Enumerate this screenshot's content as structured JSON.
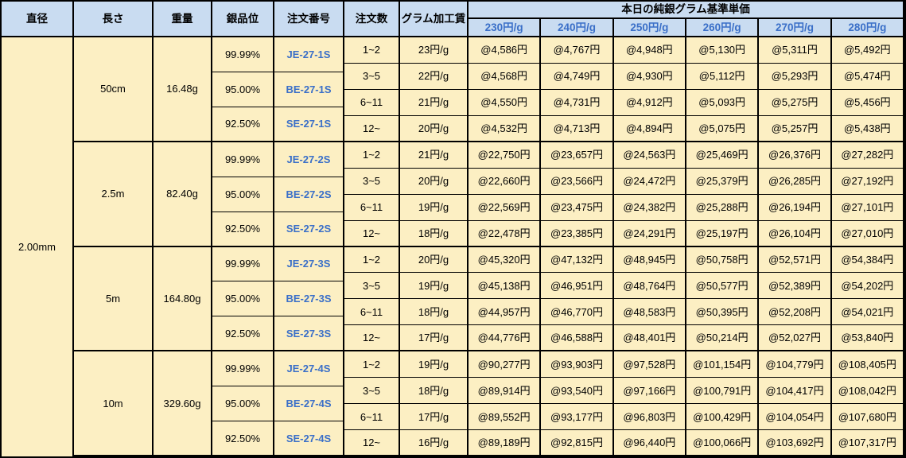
{
  "table": {
    "headers": {
      "diameter": "直径",
      "length": "長さ",
      "weight": "重量",
      "purity": "銀品位",
      "order_no": "注文番号",
      "order_qty": "注文数",
      "gram_fee": "グラム加工賃",
      "price_group": "本日の純銀グラム基準単価",
      "price_tiers": [
        "230円/g",
        "240円/g",
        "250円/g",
        "260円/g",
        "270円/g",
        "280円/g"
      ]
    },
    "diameter": "2.00mm",
    "groups": [
      {
        "length": "50cm",
        "weight": "16.48g",
        "purities": [
          {
            "purity": "99.99%",
            "order_no": "JE-27-1S"
          },
          {
            "purity": "95.00%",
            "order_no": "BE-27-1S"
          },
          {
            "purity": "92.50%",
            "order_no": "SE-27-1S"
          }
        ],
        "rows": [
          {
            "qty": "1~2",
            "fee": "23円/g",
            "prices": [
              "@4,586円",
              "@4,767円",
              "@4,948円",
              "@5,130円",
              "@5,311円",
              "@5,492円"
            ]
          },
          {
            "qty": "3~5",
            "fee": "22円/g",
            "prices": [
              "@4,568円",
              "@4,749円",
              "@4,930円",
              "@5,112円",
              "@5,293円",
              "@5,474円"
            ]
          },
          {
            "qty": "6~11",
            "fee": "21円/g",
            "prices": [
              "@4,550円",
              "@4,731円",
              "@4,912円",
              "@5,093円",
              "@5,275円",
              "@5,456円"
            ]
          },
          {
            "qty": "12~",
            "fee": "20円/g",
            "prices": [
              "@4,532円",
              "@4,713円",
              "@4,894円",
              "@5,075円",
              "@5,257円",
              "@5,438円"
            ]
          }
        ]
      },
      {
        "length": "2.5m",
        "weight": "82.40g",
        "purities": [
          {
            "purity": "99.99%",
            "order_no": "JE-27-2S"
          },
          {
            "purity": "95.00%",
            "order_no": "BE-27-2S"
          },
          {
            "purity": "92.50%",
            "order_no": "SE-27-2S"
          }
        ],
        "rows": [
          {
            "qty": "1~2",
            "fee": "21円/g",
            "prices": [
              "@22,750円",
              "@23,657円",
              "@24,563円",
              "@25,469円",
              "@26,376円",
              "@27,282円"
            ]
          },
          {
            "qty": "3~5",
            "fee": "20円/g",
            "prices": [
              "@22,660円",
              "@23,566円",
              "@24,472円",
              "@25,379円",
              "@26,285円",
              "@27,192円"
            ]
          },
          {
            "qty": "6~11",
            "fee": "19円/g",
            "prices": [
              "@22,569円",
              "@23,475円",
              "@24,382円",
              "@25,288円",
              "@26,194円",
              "@27,101円"
            ]
          },
          {
            "qty": "12~",
            "fee": "18円/g",
            "prices": [
              "@22,478円",
              "@23,385円",
              "@24,291円",
              "@25,197円",
              "@26,104円",
              "@27,010円"
            ]
          }
        ]
      },
      {
        "length": "5m",
        "weight": "164.80g",
        "purities": [
          {
            "purity": "99.99%",
            "order_no": "JE-27-3S"
          },
          {
            "purity": "95.00%",
            "order_no": "BE-27-3S"
          },
          {
            "purity": "92.50%",
            "order_no": "SE-27-3S"
          }
        ],
        "rows": [
          {
            "qty": "1~2",
            "fee": "20円/g",
            "prices": [
              "@45,320円",
              "@47,132円",
              "@48,945円",
              "@50,758円",
              "@52,571円",
              "@54,384円"
            ]
          },
          {
            "qty": "3~5",
            "fee": "19円/g",
            "prices": [
              "@45,138円",
              "@46,951円",
              "@48,764円",
              "@50,577円",
              "@52,389円",
              "@54,202円"
            ]
          },
          {
            "qty": "6~11",
            "fee": "18円/g",
            "prices": [
              "@44,957円",
              "@46,770円",
              "@48,583円",
              "@50,395円",
              "@52,208円",
              "@54,021円"
            ]
          },
          {
            "qty": "12~",
            "fee": "17円/g",
            "prices": [
              "@44,776円",
              "@46,588円",
              "@48,401円",
              "@50,214円",
              "@52,027円",
              "@53,840円"
            ]
          }
        ]
      },
      {
        "length": "10m",
        "weight": "329.60g",
        "purities": [
          {
            "purity": "99.99%",
            "order_no": "JE-27-4S"
          },
          {
            "purity": "95.00%",
            "order_no": "BE-27-4S"
          },
          {
            "purity": "92.50%",
            "order_no": "SE-27-4S"
          }
        ],
        "rows": [
          {
            "qty": "1~2",
            "fee": "19円/g",
            "prices": [
              "@90,277円",
              "@93,903円",
              "@97,528円",
              "@101,154円",
              "@104,779円",
              "@108,405円"
            ]
          },
          {
            "qty": "3~5",
            "fee": "18円/g",
            "prices": [
              "@89,914円",
              "@93,540円",
              "@97,166円",
              "@100,791円",
              "@104,417円",
              "@108,042円"
            ]
          },
          {
            "qty": "6~11",
            "fee": "17円/g",
            "prices": [
              "@89,552円",
              "@93,177円",
              "@96,803円",
              "@100,429円",
              "@104,054円",
              "@107,680円"
            ]
          },
          {
            "qty": "12~",
            "fee": "16円/g",
            "prices": [
              "@89,189円",
              "@92,815円",
              "@96,440円",
              "@100,066円",
              "@103,692円",
              "@107,317円"
            ]
          }
        ]
      }
    ]
  },
  "colors": {
    "header_bg": "#C9DCF1",
    "data_bg": "#FCEFC3",
    "accent_blue_text": "#3A6FC8",
    "border": "#000000"
  }
}
